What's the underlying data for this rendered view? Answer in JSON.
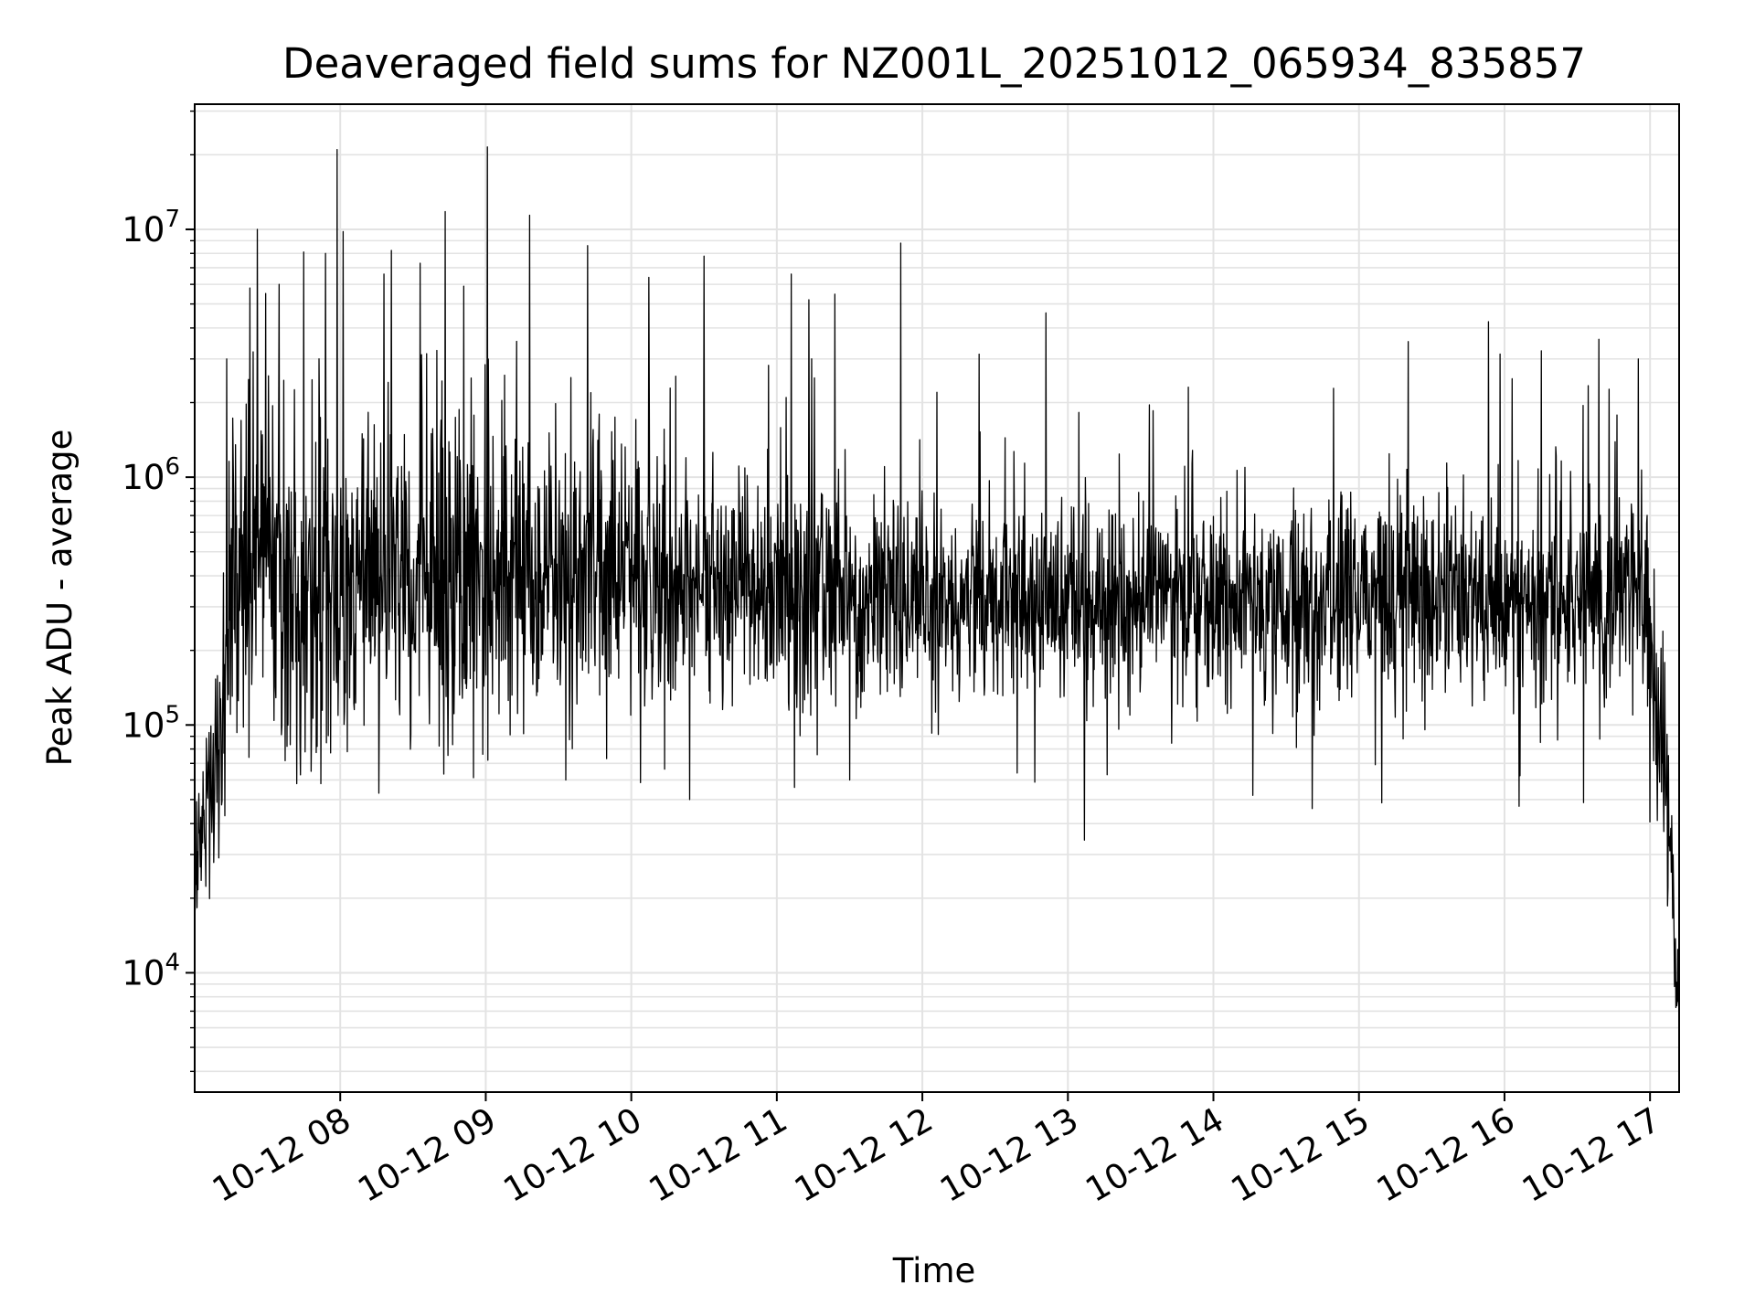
{
  "chart_data": {
    "type": "line",
    "title": "Deaveraged field sums for NZ001L_20251012_065934_835857",
    "xlabel": "Time",
    "ylabel": "Peak ADU - average",
    "yscale": "log",
    "ylim": [
      3300,
      32000000
    ],
    "xlim_hours": [
      7.0,
      17.2
    ],
    "grid": true,
    "line_color": "#000000",
    "grid_color": "#e3e3e3",
    "x_ticks": [
      {
        "hour": 8,
        "label": "10-12 08"
      },
      {
        "hour": 9,
        "label": "10-12 09"
      },
      {
        "hour": 10,
        "label": "10-12 10"
      },
      {
        "hour": 11,
        "label": "10-12 11"
      },
      {
        "hour": 12,
        "label": "10-12 12"
      },
      {
        "hour": 13,
        "label": "10-12 13"
      },
      {
        "hour": 14,
        "label": "10-12 14"
      },
      {
        "hour": 15,
        "label": "10-12 15"
      },
      {
        "hour": 16,
        "label": "10-12 16"
      },
      {
        "hour": 17,
        "label": "10-12 17"
      }
    ],
    "y_ticks": [
      {
        "value": 10000,
        "base": "10",
        "exp": "4"
      },
      {
        "value": 100000,
        "base": "10",
        "exp": "5"
      },
      {
        "value": 1000000,
        "base": "10",
        "exp": "6"
      },
      {
        "value": 10000000,
        "base": "10",
        "exp": "7"
      }
    ],
    "series": [
      {
        "name": "Peak ADU - average",
        "envelope": [
          {
            "hour": 7.0,
            "median": 25000,
            "spread": 0.15
          },
          {
            "hour": 7.12,
            "median": 60000,
            "spread": 0.2
          },
          {
            "hour": 7.25,
            "median": 300000,
            "spread": 0.3
          },
          {
            "hour": 7.3,
            "median": 500000,
            "spread": 0.35
          },
          {
            "hour": 7.6,
            "median": 380000,
            "spread": 0.35
          },
          {
            "hour": 8.5,
            "median": 380000,
            "spread": 0.33
          },
          {
            "hour": 9.6,
            "median": 400000,
            "spread": 0.3
          },
          {
            "hour": 9.8,
            "median": 450000,
            "spread": 0.28
          },
          {
            "hour": 10.5,
            "median": 370000,
            "spread": 0.24
          },
          {
            "hour": 12.0,
            "median": 330000,
            "spread": 0.2
          },
          {
            "hour": 14.0,
            "median": 330000,
            "spread": 0.2
          },
          {
            "hour": 16.0,
            "median": 320000,
            "spread": 0.2
          },
          {
            "hour": 16.95,
            "median": 330000,
            "spread": 0.22
          },
          {
            "hour": 17.05,
            "median": 120000,
            "spread": 0.25
          },
          {
            "hour": 17.12,
            "median": 40000,
            "spread": 0.2
          },
          {
            "hour": 17.18,
            "median": 9000,
            "spread": 0.15
          }
        ],
        "peaks": [
          {
            "hour": 7.22,
            "value": 3000000
          },
          {
            "hour": 7.38,
            "value": 5800000
          },
          {
            "hour": 7.43,
            "value": 10000000
          },
          {
            "hour": 7.58,
            "value": 6000000
          },
          {
            "hour": 7.75,
            "value": 8100000
          },
          {
            "hour": 7.9,
            "value": 8000000
          },
          {
            "hour": 7.98,
            "value": 21000000
          },
          {
            "hour": 8.02,
            "value": 9800000
          },
          {
            "hour": 8.3,
            "value": 6600000
          },
          {
            "hour": 8.55,
            "value": 7300000
          },
          {
            "hour": 8.72,
            "value": 11800000
          },
          {
            "hour": 8.85,
            "value": 5900000
          },
          {
            "hour": 9.01,
            "value": 21500000
          },
          {
            "hour": 9.3,
            "value": 11400000
          },
          {
            "hour": 9.7,
            "value": 8600000
          },
          {
            "hour": 10.12,
            "value": 6400000
          },
          {
            "hour": 10.5,
            "value": 7800000
          },
          {
            "hour": 11.1,
            "value": 6600000
          },
          {
            "hour": 11.22,
            "value": 5200000
          },
          {
            "hour": 11.85,
            "value": 8800000
          },
          {
            "hour": 12.1,
            "value": 2200000
          },
          {
            "hour": 12.85,
            "value": 4600000
          },
          {
            "hour": 16.65,
            "value": 3600000
          },
          {
            "hour": 16.92,
            "value": 3000000
          }
        ],
        "dips": [
          {
            "hour": 7.8,
            "value": 65000
          },
          {
            "hour": 8.05,
            "value": 78000
          },
          {
            "hour": 9.55,
            "value": 60000
          },
          {
            "hour": 10.4,
            "value": 50000
          },
          {
            "hour": 11.12,
            "value": 56000
          },
          {
            "hour": 11.5,
            "value": 60000
          },
          {
            "hour": 12.65,
            "value": 64000
          },
          {
            "hour": 13.27,
            "value": 63000
          },
          {
            "hour": 14.27,
            "value": 52000
          },
          {
            "hour": 14.68,
            "value": 46000
          },
          {
            "hour": 16.1,
            "value": 47000
          }
        ]
      }
    ]
  }
}
